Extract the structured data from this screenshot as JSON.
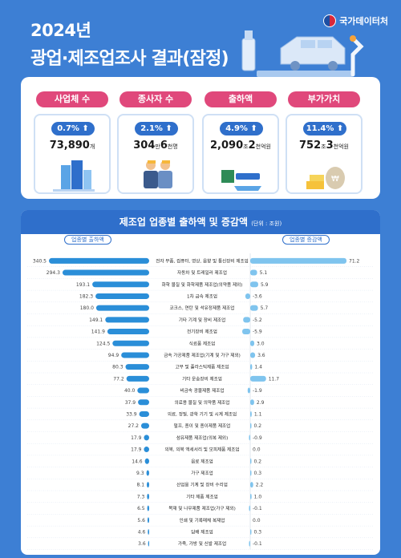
{
  "header": {
    "year": "2024년",
    "title": "광업·제조업조사 결과(잠정)",
    "brand": "국가데이터처"
  },
  "stats": [
    {
      "label": "사업체 수",
      "change": "0.7%",
      "value_main": "73,890",
      "value_unit": "개",
      "value_rest": "",
      "value_rest_unit": "",
      "color": "#e0487b"
    },
    {
      "label": "종사자 수",
      "change": "2.1%",
      "value_main": "304",
      "value_unit": "만",
      "value_rest": "6",
      "value_rest_unit": "천명",
      "color": "#e0487b"
    },
    {
      "label": "출하액",
      "change": "4.9%",
      "value_main": "2,090",
      "value_unit": "조",
      "value_rest": "2",
      "value_rest_unit": "천억원",
      "color": "#e0487b"
    },
    {
      "label": "부가가치",
      "change": "11.4%",
      "value_main": "752",
      "value_unit": "조",
      "value_rest": "3",
      "value_rest_unit": "천억원",
      "color": "#e0487b"
    }
  ],
  "colors": {
    "bar": "#2a8ed8",
    "growth": "#7fc4ee",
    "accent": "#2f6fcb"
  },
  "chart_data": {
    "type": "bar",
    "title": "제조업 업종별 출하액 및 증감액",
    "unit_note": "(단위 : 조원)",
    "left_series": "업종별 출하액",
    "right_series": "업종별 증감액",
    "categories": [
      "전자 부품, 컴퓨터, 영상, 음향 및 통신장비 제조업",
      "자동차 및 트레일러 제조업",
      "화학 물질 및 화학제품 제조업(의약품 제외)",
      "1차 금속 제조업",
      "코크스, 연탄 및 석유정제품 제조업",
      "기타 기계 및 장비 제조업",
      "전기장비 제조업",
      "식료품 제조업",
      "금속 가공제품 제조업(기계 및 가구 제외)",
      "고무 및 플라스틱제품 제조업",
      "기타 운송장비 제조업",
      "비금속 광물제품 제조업",
      "의료용 물질 및 의약품 제조업",
      "의료, 정밀, 광학 기기 및 시계 제조업",
      "펄프, 종이 및 종이제품 제조업",
      "섬유제품 제조업(의복 제외)",
      "의복, 의복 액세서리 및 모피제품 제조업",
      "음료 제조업",
      "가구 제조업",
      "산업용 기계 및 장비 수리업",
      "기타 제품 제조업",
      "목재 및 나무제품 제조업(가구 제외)",
      "인쇄 및 기록매체 복제업",
      "담배 제조업",
      "가죽, 가방 및 신발 제조업"
    ],
    "shipments": [
      340.5,
      294.3,
      193.1,
      182.3,
      180.0,
      149.1,
      141.9,
      124.5,
      94.9,
      80.3,
      77.2,
      40.0,
      37.9,
      33.9,
      27.2,
      17.9,
      17.9,
      14.6,
      9.3,
      8.1,
      7.3,
      6.5,
      5.6,
      4.6,
      3.6
    ],
    "shipment_labels": [
      "340.5",
      "294.3",
      "193.1",
      "182.3",
      "180.0",
      "149.1",
      "141.9",
      "124.5",
      "94.9",
      "80.3",
      "77.2",
      "40.0",
      "37.9",
      "33.9",
      "27.2",
      "17.9",
      "17.9",
      "14.6",
      "9.3",
      "8.1",
      "7.3",
      "6.5",
      "5.6",
      "4.6",
      "3.6"
    ],
    "growth": [
      71.2,
      5.1,
      5.9,
      -3.6,
      5.7,
      -5.2,
      -5.9,
      3.0,
      3.6,
      1.4,
      11.7,
      -1.9,
      2.9,
      1.1,
      0.2,
      -0.9,
      0.0,
      0.2,
      0.3,
      2.2,
      1.0,
      -0.1,
      0.0,
      0.3,
      -0.1
    ],
    "growth_labels": [
      "71.2",
      "5.1",
      "5.9",
      "-3.6",
      "5.7",
      "-5.2",
      "-5.9",
      "3.0",
      "3.6",
      "1.4",
      "11.7",
      "-1.9",
      "2.9",
      "1.1",
      "0.2",
      "-0.9",
      "0.0",
      "0.2",
      "0.3",
      "2.2",
      "1.0",
      "-0.1",
      "0.0",
      "0.3",
      "-0.1"
    ]
  }
}
